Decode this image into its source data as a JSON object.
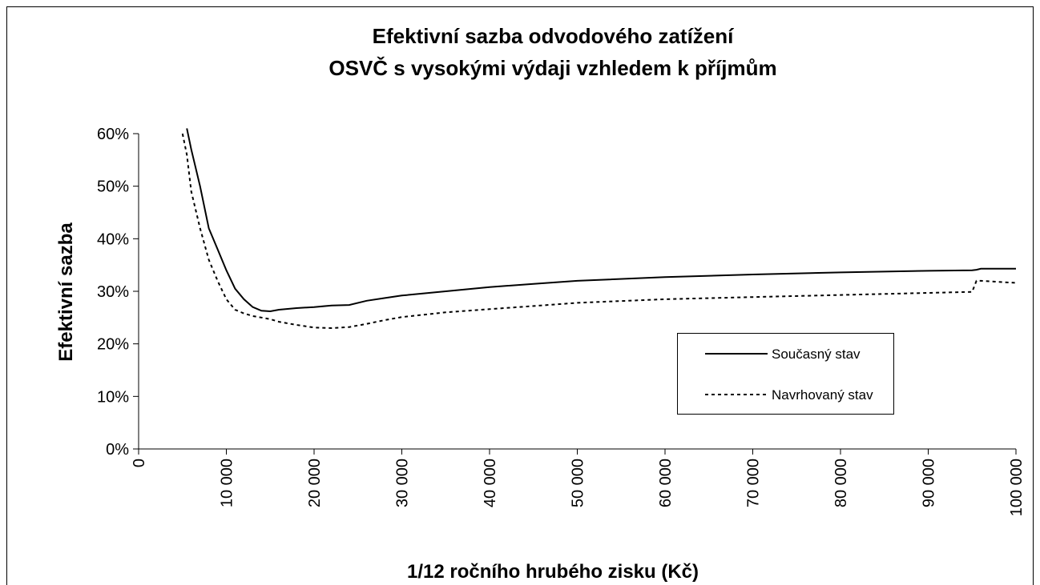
{
  "chart_data": {
    "type": "line",
    "title": [
      "Efektivní sazba odvodového zatížení",
      "OSVČ s vysokými výdaji vzhledem k příjmům"
    ],
    "xlabel": "1/12 ročního hrubého zisku (Kč)",
    "ylabel": "Efektivní sazba",
    "x": [
      5000,
      5500,
      6000,
      7000,
      8000,
      9000,
      10000,
      11000,
      12000,
      13000,
      14000,
      15000,
      16000,
      18000,
      20000,
      22000,
      24000,
      26000,
      28000,
      30000,
      35000,
      40000,
      45000,
      50000,
      60000,
      70000,
      80000,
      90000,
      95000,
      95500,
      96000,
      100000
    ],
    "series": [
      {
        "name": "Současný stav",
        "color": "#000000",
        "style": "solid",
        "values": [
          null,
          61,
          57,
          50,
          42,
          38,
          34,
          30.5,
          28.5,
          27,
          26.3,
          26.2,
          26.5,
          26.8,
          27,
          27.3,
          27.4,
          28.2,
          28.7,
          29.2,
          30,
          30.8,
          31.4,
          32,
          32.7,
          33.2,
          33.6,
          33.9,
          34,
          34.1,
          34.3,
          34.3
        ]
      },
      {
        "name": "Navrhovaný stav",
        "color": "#000000",
        "style": "dotted",
        "values": [
          60,
          56,
          49,
          42,
          36,
          32,
          28.5,
          26.5,
          25.8,
          25.3,
          25,
          24.7,
          24.2,
          23.6,
          23.1,
          23,
          23.2,
          23.8,
          24.5,
          25.1,
          26,
          26.6,
          27.2,
          27.8,
          28.5,
          28.9,
          29.3,
          29.7,
          29.9,
          32,
          32,
          31.6
        ]
      }
    ],
    "xlim": [
      0,
      100000
    ],
    "ylim": [
      0,
      60
    ],
    "xticks": [
      0,
      {
        "value": 10000,
        "label": "10 000"
      },
      {
        "value": 20000,
        "label": "20 000"
      },
      {
        "value": 30000,
        "label": "30 000"
      },
      {
        "value": 40000,
        "label": "40 000"
      },
      {
        "value": 50000,
        "label": "50 000"
      },
      {
        "value": 60000,
        "label": "60 000"
      },
      {
        "value": 70000,
        "label": "70 000"
      },
      {
        "value": 80000,
        "label": "80 000"
      },
      {
        "value": 90000,
        "label": "90 000"
      },
      {
        "value": 100000,
        "label": "100 000"
      }
    ],
    "yticks": [
      {
        "value": 0,
        "label": "0%"
      },
      {
        "value": 10,
        "label": "10%"
      },
      {
        "value": 20,
        "label": "20%"
      },
      {
        "value": 30,
        "label": "30%"
      },
      {
        "value": 40,
        "label": "40%"
      },
      {
        "value": 50,
        "label": "50%"
      },
      {
        "value": 60,
        "label": "60%"
      }
    ],
    "grid": false
  }
}
